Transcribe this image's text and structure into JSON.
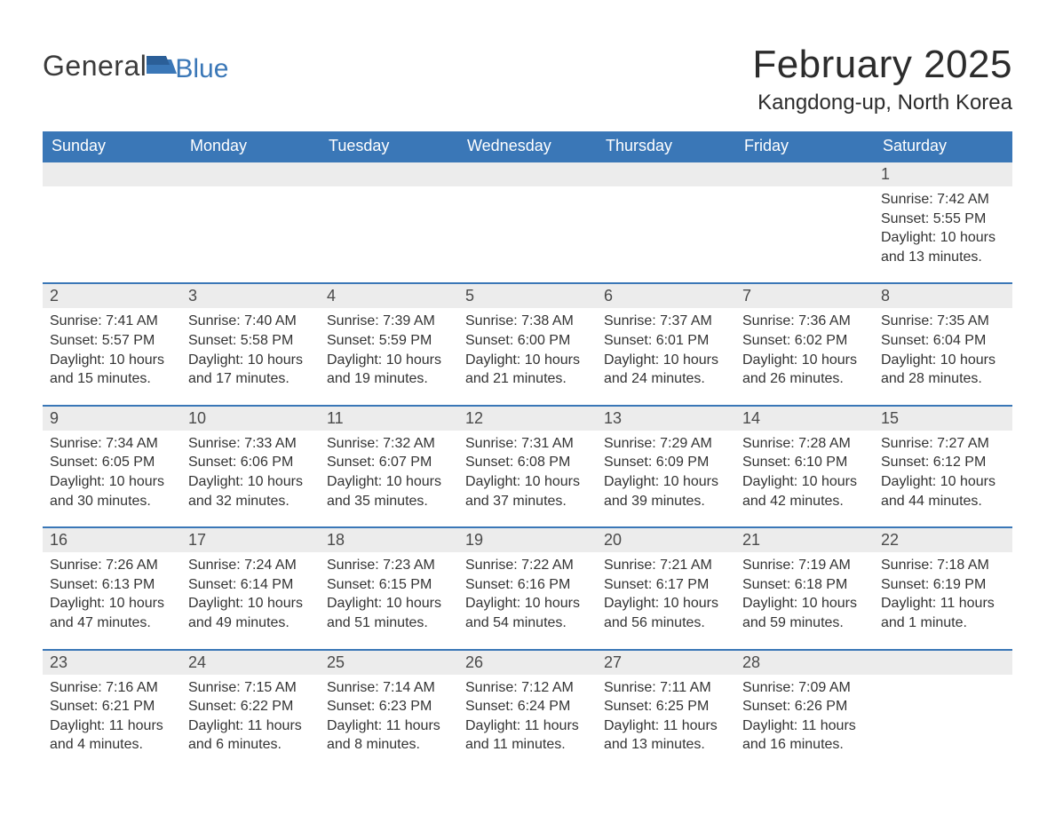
{
  "logo": {
    "word1": "General",
    "word2": "Blue"
  },
  "title": "February 2025",
  "location": "Kangdong-up, North Korea",
  "colors": {
    "header_bg": "#3a77b7",
    "header_text": "#ffffff",
    "daybar_bg": "#ececec",
    "daybar_border": "#3a77b7",
    "body_text": "#333333",
    "page_bg": "#ffffff"
  },
  "weekdays": [
    "Sunday",
    "Monday",
    "Tuesday",
    "Wednesday",
    "Thursday",
    "Friday",
    "Saturday"
  ],
  "weeks": [
    [
      null,
      null,
      null,
      null,
      null,
      null,
      {
        "n": "1",
        "sr": "Sunrise: 7:42 AM",
        "ss": "Sunset: 5:55 PM",
        "dl1": "Daylight: 10 hours",
        "dl2": "and 13 minutes."
      }
    ],
    [
      {
        "n": "2",
        "sr": "Sunrise: 7:41 AM",
        "ss": "Sunset: 5:57 PM",
        "dl1": "Daylight: 10 hours",
        "dl2": "and 15 minutes."
      },
      {
        "n": "3",
        "sr": "Sunrise: 7:40 AM",
        "ss": "Sunset: 5:58 PM",
        "dl1": "Daylight: 10 hours",
        "dl2": "and 17 minutes."
      },
      {
        "n": "4",
        "sr": "Sunrise: 7:39 AM",
        "ss": "Sunset: 5:59 PM",
        "dl1": "Daylight: 10 hours",
        "dl2": "and 19 minutes."
      },
      {
        "n": "5",
        "sr": "Sunrise: 7:38 AM",
        "ss": "Sunset: 6:00 PM",
        "dl1": "Daylight: 10 hours",
        "dl2": "and 21 minutes."
      },
      {
        "n": "6",
        "sr": "Sunrise: 7:37 AM",
        "ss": "Sunset: 6:01 PM",
        "dl1": "Daylight: 10 hours",
        "dl2": "and 24 minutes."
      },
      {
        "n": "7",
        "sr": "Sunrise: 7:36 AM",
        "ss": "Sunset: 6:02 PM",
        "dl1": "Daylight: 10 hours",
        "dl2": "and 26 minutes."
      },
      {
        "n": "8",
        "sr": "Sunrise: 7:35 AM",
        "ss": "Sunset: 6:04 PM",
        "dl1": "Daylight: 10 hours",
        "dl2": "and 28 minutes."
      }
    ],
    [
      {
        "n": "9",
        "sr": "Sunrise: 7:34 AM",
        "ss": "Sunset: 6:05 PM",
        "dl1": "Daylight: 10 hours",
        "dl2": "and 30 minutes."
      },
      {
        "n": "10",
        "sr": "Sunrise: 7:33 AM",
        "ss": "Sunset: 6:06 PM",
        "dl1": "Daylight: 10 hours",
        "dl2": "and 32 minutes."
      },
      {
        "n": "11",
        "sr": "Sunrise: 7:32 AM",
        "ss": "Sunset: 6:07 PM",
        "dl1": "Daylight: 10 hours",
        "dl2": "and 35 minutes."
      },
      {
        "n": "12",
        "sr": "Sunrise: 7:31 AM",
        "ss": "Sunset: 6:08 PM",
        "dl1": "Daylight: 10 hours",
        "dl2": "and 37 minutes."
      },
      {
        "n": "13",
        "sr": "Sunrise: 7:29 AM",
        "ss": "Sunset: 6:09 PM",
        "dl1": "Daylight: 10 hours",
        "dl2": "and 39 minutes."
      },
      {
        "n": "14",
        "sr": "Sunrise: 7:28 AM",
        "ss": "Sunset: 6:10 PM",
        "dl1": "Daylight: 10 hours",
        "dl2": "and 42 minutes."
      },
      {
        "n": "15",
        "sr": "Sunrise: 7:27 AM",
        "ss": "Sunset: 6:12 PM",
        "dl1": "Daylight: 10 hours",
        "dl2": "and 44 minutes."
      }
    ],
    [
      {
        "n": "16",
        "sr": "Sunrise: 7:26 AM",
        "ss": "Sunset: 6:13 PM",
        "dl1": "Daylight: 10 hours",
        "dl2": "and 47 minutes."
      },
      {
        "n": "17",
        "sr": "Sunrise: 7:24 AM",
        "ss": "Sunset: 6:14 PM",
        "dl1": "Daylight: 10 hours",
        "dl2": "and 49 minutes."
      },
      {
        "n": "18",
        "sr": "Sunrise: 7:23 AM",
        "ss": "Sunset: 6:15 PM",
        "dl1": "Daylight: 10 hours",
        "dl2": "and 51 minutes."
      },
      {
        "n": "19",
        "sr": "Sunrise: 7:22 AM",
        "ss": "Sunset: 6:16 PM",
        "dl1": "Daylight: 10 hours",
        "dl2": "and 54 minutes."
      },
      {
        "n": "20",
        "sr": "Sunrise: 7:21 AM",
        "ss": "Sunset: 6:17 PM",
        "dl1": "Daylight: 10 hours",
        "dl2": "and 56 minutes."
      },
      {
        "n": "21",
        "sr": "Sunrise: 7:19 AM",
        "ss": "Sunset: 6:18 PM",
        "dl1": "Daylight: 10 hours",
        "dl2": "and 59 minutes."
      },
      {
        "n": "22",
        "sr": "Sunrise: 7:18 AM",
        "ss": "Sunset: 6:19 PM",
        "dl1": "Daylight: 11 hours",
        "dl2": "and 1 minute."
      }
    ],
    [
      {
        "n": "23",
        "sr": "Sunrise: 7:16 AM",
        "ss": "Sunset: 6:21 PM",
        "dl1": "Daylight: 11 hours",
        "dl2": "and 4 minutes."
      },
      {
        "n": "24",
        "sr": "Sunrise: 7:15 AM",
        "ss": "Sunset: 6:22 PM",
        "dl1": "Daylight: 11 hours",
        "dl2": "and 6 minutes."
      },
      {
        "n": "25",
        "sr": "Sunrise: 7:14 AM",
        "ss": "Sunset: 6:23 PM",
        "dl1": "Daylight: 11 hours",
        "dl2": "and 8 minutes."
      },
      {
        "n": "26",
        "sr": "Sunrise: 7:12 AM",
        "ss": "Sunset: 6:24 PM",
        "dl1": "Daylight: 11 hours",
        "dl2": "and 11 minutes."
      },
      {
        "n": "27",
        "sr": "Sunrise: 7:11 AM",
        "ss": "Sunset: 6:25 PM",
        "dl1": "Daylight: 11 hours",
        "dl2": "and 13 minutes."
      },
      {
        "n": "28",
        "sr": "Sunrise: 7:09 AM",
        "ss": "Sunset: 6:26 PM",
        "dl1": "Daylight: 11 hours",
        "dl2": "and 16 minutes."
      },
      null
    ]
  ]
}
